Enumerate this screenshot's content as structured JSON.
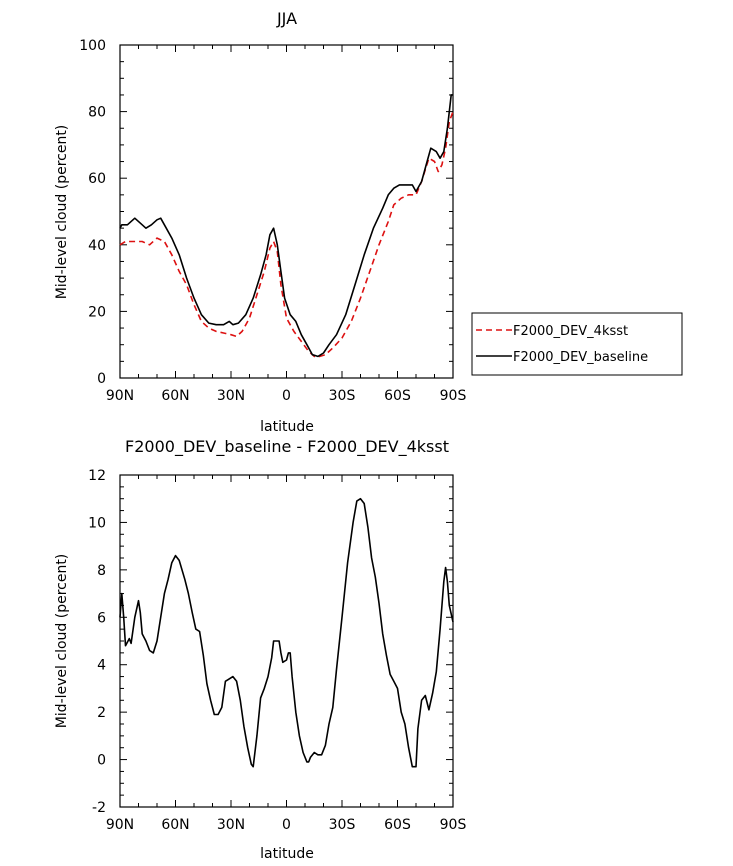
{
  "chart_data": [
    {
      "type": "line",
      "title": "JJA",
      "xlabel": "latitude",
      "ylabel": "Mid-level cloud (percent)",
      "xlim": [
        90,
        -90
      ],
      "ylim": [
        0,
        100
      ],
      "x_ticks": [
        90,
        60,
        30,
        0,
        -30,
        -60,
        -90
      ],
      "x_tick_labels": [
        "90N",
        "60N",
        "30N",
        "0",
        "30S",
        "60S",
        "90S"
      ],
      "y_ticks": [
        0,
        20,
        40,
        60,
        80,
        100
      ],
      "y_tick_labels": [
        "0",
        "20",
        "40",
        "60",
        "80",
        "100"
      ],
      "legend_position": "right",
      "series": [
        {
          "name": "F2000_DEV_4ksst",
          "color": "#dd1111",
          "dash": "dashed",
          "points": [
            [
              90,
              40
            ],
            [
              87,
              41
            ],
            [
              83,
              41
            ],
            [
              78,
              41
            ],
            [
              74,
              40
            ],
            [
              70,
              42
            ],
            [
              66,
              41
            ],
            [
              62,
              37
            ],
            [
              58,
              32
            ],
            [
              54,
              28
            ],
            [
              50,
              22
            ],
            [
              46,
              17
            ],
            [
              42,
              15
            ],
            [
              38,
              14
            ],
            [
              34,
              13.5
            ],
            [
              30,
              13
            ],
            [
              27,
              12.5
            ],
            [
              24,
              14
            ],
            [
              20,
              18
            ],
            [
              16,
              25
            ],
            [
              12,
              32
            ],
            [
              9,
              39
            ],
            [
              7,
              41
            ],
            [
              5,
              38
            ],
            [
              3,
              28
            ],
            [
              0,
              18
            ],
            [
              -4,
              14
            ],
            [
              -8,
              11
            ],
            [
              -12,
              8
            ],
            [
              -15,
              6.5
            ],
            [
              -18,
              6.5
            ],
            [
              -21,
              7
            ],
            [
              -25,
              9
            ],
            [
              -30,
              12
            ],
            [
              -35,
              17
            ],
            [
              -40,
              24
            ],
            [
              -45,
              32
            ],
            [
              -50,
              40
            ],
            [
              -55,
              47
            ],
            [
              -58,
              52
            ],
            [
              -62,
              54
            ],
            [
              -66,
              55
            ],
            [
              -68,
              55
            ],
            [
              -70,
              55
            ],
            [
              -73,
              59
            ],
            [
              -77,
              66
            ],
            [
              -80,
              65
            ],
            [
              -82,
              62
            ],
            [
              -84,
              64
            ],
            [
              -86,
              69
            ],
            [
              -88,
              77
            ],
            [
              -90,
              80
            ]
          ]
        },
        {
          "name": "F2000_DEV_baseline",
          "color": "#000000",
          "dash": "solid",
          "points": [
            [
              90,
              45
            ],
            [
              89,
              46
            ],
            [
              86,
              46
            ],
            [
              82,
              48
            ],
            [
              78,
              46
            ],
            [
              76,
              45
            ],
            [
              73,
              46
            ],
            [
              70,
              47.5
            ],
            [
              68,
              48
            ],
            [
              66,
              46
            ],
            [
              62,
              42
            ],
            [
              58,
              37
            ],
            [
              54,
              30
            ],
            [
              50,
              24
            ],
            [
              46,
              19
            ],
            [
              42,
              16.5
            ],
            [
              38,
              16
            ],
            [
              34,
              16
            ],
            [
              31,
              17
            ],
            [
              29,
              16
            ],
            [
              26,
              16.5
            ],
            [
              22,
              19
            ],
            [
              18,
              24
            ],
            [
              14,
              31
            ],
            [
              11,
              37
            ],
            [
              9,
              43
            ],
            [
              7,
              45
            ],
            [
              5,
              40
            ],
            [
              3,
              32
            ],
            [
              1,
              24
            ],
            [
              -2,
              19
            ],
            [
              -5,
              17
            ],
            [
              -8,
              13
            ],
            [
              -11,
              10
            ],
            [
              -14,
              7
            ],
            [
              -17,
              6.5
            ],
            [
              -20,
              7.5
            ],
            [
              -23,
              10
            ],
            [
              -27,
              13
            ],
            [
              -32,
              19
            ],
            [
              -37,
              28
            ],
            [
              -42,
              37
            ],
            [
              -47,
              45
            ],
            [
              -52,
              51
            ],
            [
              -55,
              55
            ],
            [
              -58,
              57
            ],
            [
              -61,
              58
            ],
            [
              -65,
              58
            ],
            [
              -68,
              58
            ],
            [
              -70,
              56
            ],
            [
              -73,
              59
            ],
            [
              -76,
              65
            ],
            [
              -78,
              69
            ],
            [
              -81,
              68
            ],
            [
              -83,
              66
            ],
            [
              -85,
              68
            ],
            [
              -87,
              75
            ],
            [
              -89,
              85
            ],
            [
              -90,
              85
            ]
          ]
        }
      ]
    },
    {
      "type": "line",
      "title": "F2000_DEV_baseline - F2000_DEV_4ksst",
      "xlabel": "latitude",
      "ylabel": "Mid-level cloud (percent)",
      "xlim": [
        90,
        -90
      ],
      "ylim": [
        -2,
        12
      ],
      "x_ticks": [
        90,
        60,
        30,
        0,
        -30,
        -60,
        -90
      ],
      "x_tick_labels": [
        "90N",
        "60N",
        "30N",
        "0",
        "30S",
        "60S",
        "90S"
      ],
      "y_ticks": [
        -2,
        0,
        2,
        4,
        6,
        8,
        10,
        12
      ],
      "y_tick_labels": [
        "-2",
        "0",
        "2",
        "4",
        "6",
        "8",
        "10",
        "12"
      ],
      "series": [
        {
          "color": "#000000",
          "dash": "solid",
          "points": [
            [
              90,
              6
            ],
            [
              89,
              7
            ],
            [
              88,
              6
            ],
            [
              87,
              4.8
            ],
            [
              85,
              5.1
            ],
            [
              84,
              4.9
            ],
            [
              82,
              6
            ],
            [
              80,
              6.7
            ],
            [
              79,
              6.2
            ],
            [
              78,
              5.3
            ],
            [
              76,
              5
            ],
            [
              74,
              4.6
            ],
            [
              72,
              4.5
            ],
            [
              70,
              5
            ],
            [
              68,
              6
            ],
            [
              66,
              7
            ],
            [
              64,
              7.6
            ],
            [
              62,
              8.3
            ],
            [
              60,
              8.6
            ],
            [
              58,
              8.4
            ],
            [
              55,
              7.6
            ],
            [
              53,
              7
            ],
            [
              51,
              6.2
            ],
            [
              49,
              5.5
            ],
            [
              47,
              5.4
            ],
            [
              45,
              4.4
            ],
            [
              43,
              3.2
            ],
            [
              41,
              2.5
            ],
            [
              39,
              1.9
            ],
            [
              37,
              1.9
            ],
            [
              35,
              2.2
            ],
            [
              33,
              3.3
            ],
            [
              31,
              3.4
            ],
            [
              29,
              3.5
            ],
            [
              27,
              3.3
            ],
            [
              25,
              2.5
            ],
            [
              23,
              1.4
            ],
            [
              21,
              0.5
            ],
            [
              19,
              -0.2
            ],
            [
              18,
              -0.3
            ],
            [
              16,
              1
            ],
            [
              14,
              2.6
            ],
            [
              12,
              3
            ],
            [
              10,
              3.5
            ],
            [
              8,
              4.3
            ],
            [
              7,
              5
            ],
            [
              5,
              5
            ],
            [
              4,
              5
            ],
            [
              3,
              4.5
            ],
            [
              2,
              4.1
            ],
            [
              0,
              4.2
            ],
            [
              -1,
              4.5
            ],
            [
              -2,
              4.5
            ],
            [
              -3,
              3.5
            ],
            [
              -5,
              2
            ],
            [
              -7,
              1
            ],
            [
              -9,
              0.3
            ],
            [
              -11,
              -0.1
            ],
            [
              -12,
              -0.1
            ],
            [
              -13,
              0.1
            ],
            [
              -15,
              0.3
            ],
            [
              -17,
              0.2
            ],
            [
              -19,
              0.2
            ],
            [
              -21,
              0.6
            ],
            [
              -23,
              1.5
            ],
            [
              -25,
              2.2
            ],
            [
              -27,
              3.8
            ],
            [
              -30,
              6
            ],
            [
              -33,
              8.3
            ],
            [
              -36,
              10
            ],
            [
              -38,
              10.9
            ],
            [
              -40,
              11
            ],
            [
              -42,
              10.8
            ],
            [
              -44,
              9.8
            ],
            [
              -46,
              8.5
            ],
            [
              -48,
              7.7
            ],
            [
              -50,
              6.6
            ],
            [
              -52,
              5.3
            ],
            [
              -54,
              4.4
            ],
            [
              -56,
              3.6
            ],
            [
              -58,
              3.3
            ],
            [
              -60,
              3
            ],
            [
              -62,
              2
            ],
            [
              -64,
              1.5
            ],
            [
              -66,
              0.5
            ],
            [
              -68,
              -0.3
            ],
            [
              -70,
              -0.3
            ],
            [
              -71,
              1.3
            ],
            [
              -73,
              2.5
            ],
            [
              -75,
              2.7
            ],
            [
              -77,
              2.1
            ],
            [
              -79,
              2.8
            ],
            [
              -81,
              3.7
            ],
            [
              -83,
              5.5
            ],
            [
              -85,
              7.5
            ],
            [
              -86,
              8.1
            ],
            [
              -87,
              7.5
            ],
            [
              -88,
              6.5
            ],
            [
              -90,
              5.8
            ]
          ]
        }
      ]
    }
  ]
}
